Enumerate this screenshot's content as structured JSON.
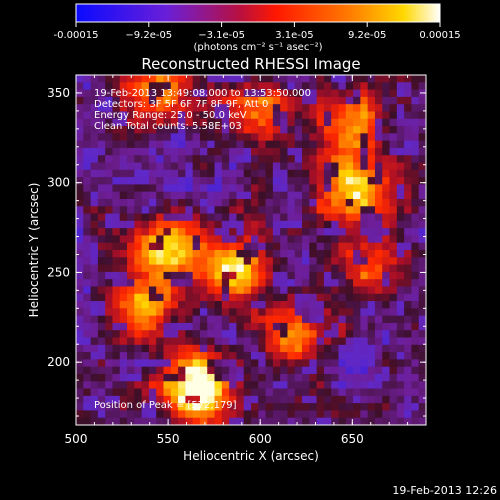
{
  "chart_data": {
    "type": "heatmap",
    "title": "Reconstructed RHESSI Image",
    "xlabel": "Heliocentric X (arcsec)",
    "ylabel": "Heliocentric Y (arcsec)",
    "xlim": [
      500,
      690
    ],
    "ylim": [
      165,
      360
    ],
    "x_ticks": [
      500,
      550,
      600,
      650
    ],
    "y_ticks": [
      200,
      250,
      300,
      350
    ],
    "colorbar": {
      "range": [
        -0.00015,
        0.00015
      ],
      "tick_labels": [
        "-0.00015",
        "−9.2e-05",
        "−3.1e-05",
        "3.1e-05",
        "9.2e-05",
        "0.00015"
      ],
      "units_label": "(photons cm⁻² s⁻¹ asec⁻²)",
      "colors": [
        "#1a1aff",
        "#7a1fd0",
        "#c01850",
        "#ff2000",
        "#ff8a00",
        "#ffd000",
        "#ffffff"
      ]
    },
    "annotations": [
      "19-Feb-2013 13:49:08.000 to 13:53:50.000",
      "Detectors: 3F 5F 6F 7F 8F 9F, Att 0",
      "Energy Range: 25.0 - 50.0 keV",
      "Clean    Total counts: 5.58E+03"
    ],
    "peak_label": "Position of Peak = [572,179]",
    "grid": false,
    "emission_regions": [
      {
        "x": 565,
        "y": 185,
        "level": 1.0
      },
      {
        "x": 585,
        "y": 250,
        "level": 0.85
      },
      {
        "x": 548,
        "y": 262,
        "level": 0.7
      },
      {
        "x": 650,
        "y": 297,
        "level": 0.8
      },
      {
        "x": 535,
        "y": 230,
        "level": 0.55
      },
      {
        "x": 620,
        "y": 215,
        "level": 0.6
      },
      {
        "x": 650,
        "y": 335,
        "level": 0.55
      },
      {
        "x": 545,
        "y": 352,
        "level": 0.5
      },
      {
        "x": 600,
        "y": 340,
        "level": 0.45
      },
      {
        "x": 660,
        "y": 255,
        "level": 0.45
      }
    ]
  },
  "footer": {
    "timestamp": "19-Feb-2013 12:26"
  }
}
